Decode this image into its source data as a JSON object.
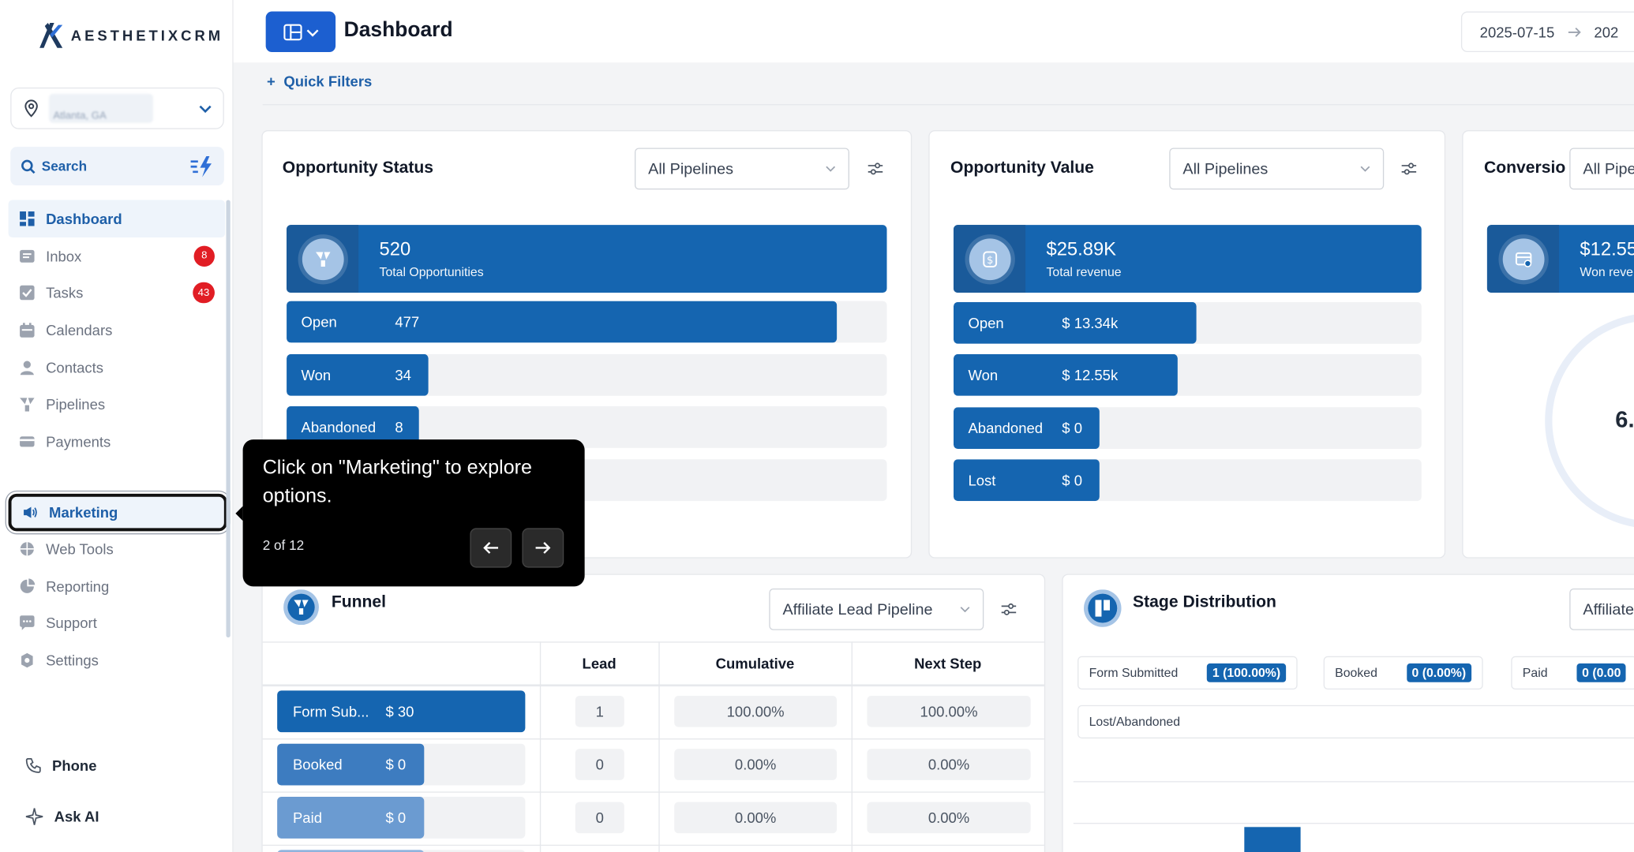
{
  "sidebar": {
    "logo_text": "AESTHETIXCRM",
    "location_sub": "Atlanta, GA",
    "search_label": "Search",
    "items": [
      {
        "label": "Dashboard"
      },
      {
        "label": "Inbox",
        "badge": "8"
      },
      {
        "label": "Tasks",
        "badge": "43"
      },
      {
        "label": "Calendars"
      },
      {
        "label": "Contacts"
      },
      {
        "label": "Pipelines"
      },
      {
        "label": "Payments"
      }
    ],
    "marketing_label": "Marketing",
    "items2": [
      {
        "label": "Web Tools"
      },
      {
        "label": "Reporting"
      },
      {
        "label": "Support"
      },
      {
        "label": "Settings"
      }
    ],
    "phone_label": "Phone",
    "ask_ai_label": "Ask AI"
  },
  "header": {
    "title": "Dashboard",
    "date_start": "2025-07-15",
    "date_end": "202"
  },
  "quick_filters_label": "Quick Filters",
  "opportunity_status": {
    "title": "Opportunity Status",
    "pipeline": "All Pipelines",
    "total_value": "520",
    "total_label": "Total Opportunities",
    "rows": [
      {
        "label": "Open",
        "value": "477",
        "fraction": 0.917
      },
      {
        "label": "Won",
        "value": "34",
        "fraction": 0.235
      },
      {
        "label": "Abandoned",
        "value": "8",
        "fraction": 0.219
      }
    ]
  },
  "opportunity_value": {
    "title": "Opportunity Value",
    "pipeline": "All Pipelines",
    "total_value": "$25.89K",
    "total_label": "Total revenue",
    "rows": [
      {
        "label": "Open",
        "value": "$ 13.34k",
        "fraction": 0.52
      },
      {
        "label": "Won",
        "value": "$ 12.55k",
        "fraction": 0.48
      },
      {
        "label": "Abandoned",
        "value": "$ 0",
        "fraction": 0.31
      },
      {
        "label": "Lost",
        "value": "$ 0",
        "fraction": 0.31
      }
    ]
  },
  "conversion": {
    "title": "Conversio",
    "pipeline": "All Pipe",
    "total_value": "$12.55",
    "total_label": "Won reve",
    "gauge_value": "6."
  },
  "funnel": {
    "title": "Funnel",
    "pipeline": "Affiliate Lead Pipeline",
    "columns": [
      "Lead",
      "Cumulative",
      "Next Step"
    ],
    "rows": [
      {
        "stage": "Form Sub...",
        "amount": "$ 30",
        "lead": "1",
        "cumulative": "100.00%",
        "next_step": "100.00%",
        "fraction": 1.0,
        "color": "#1565b0"
      },
      {
        "stage": "Booked",
        "amount": "$ 0",
        "lead": "0",
        "cumulative": "0.00%",
        "next_step": "0.00%",
        "fraction": 0.59,
        "color": "#3d7cc0"
      },
      {
        "stage": "Paid",
        "amount": "$ 0",
        "lead": "0",
        "cumulative": "0.00%",
        "next_step": "0.00%",
        "fraction": 0.59,
        "color": "#6b9bd1"
      }
    ]
  },
  "stage_distribution": {
    "title": "Stage Distribution",
    "pipeline": "Affiliate",
    "chips": [
      {
        "label": "Form Submitted",
        "pct": "1 (100.00%)"
      },
      {
        "label": "Booked",
        "pct": "0 (0.00%)"
      },
      {
        "label": "Paid",
        "pct": "0 (0.00"
      },
      {
        "label": "Lost/Abandoned",
        "pct": ""
      }
    ]
  },
  "tooltip": {
    "message": "Click on \"Marketing\" to explore options.",
    "step": "2 of 12"
  },
  "colors": {
    "primary": "#1565b0",
    "accent": "#1c5fd0",
    "badge": "#e11d24"
  }
}
